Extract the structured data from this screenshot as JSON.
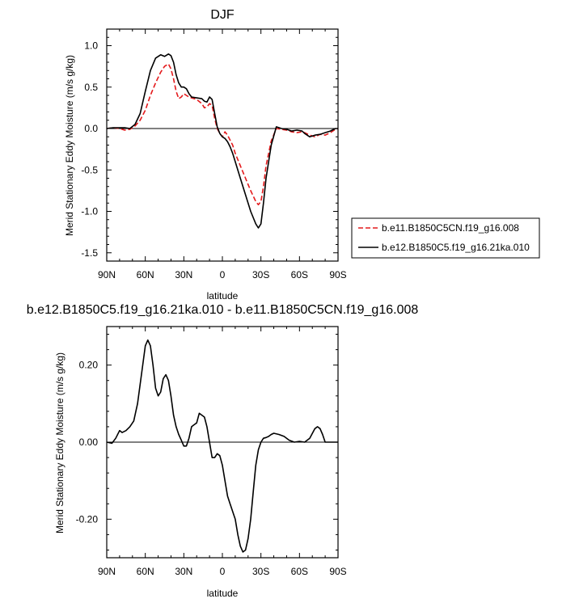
{
  "chart_data": [
    {
      "type": "line",
      "title": "DJF",
      "xlabel": "latitude",
      "ylabel": "Merid Stationary Eddy Moisture (m/s g/kg)",
      "xlim": [
        90,
        -90
      ],
      "ylim": [
        -1.6,
        1.2
      ],
      "xticks": [
        90,
        60,
        30,
        0,
        -30,
        -60,
        -90
      ],
      "xtick_labels": [
        "90N",
        "60N",
        "30N",
        "0",
        "30S",
        "60S",
        "90S"
      ],
      "yticks": [
        -1.5,
        -1.0,
        -0.5,
        0.0,
        0.5,
        1.0
      ],
      "ytick_labels": [
        "-1.5",
        "-1.0",
        "-0.5",
        "0.0",
        "0.5",
        "1.0"
      ],
      "legend_position": "right",
      "series": [
        {
          "name": "b.e11.B1850C5CN.f19_g16.008",
          "color": "#e41a1c",
          "dash": true,
          "x": [
            90,
            85,
            80,
            76,
            72,
            68,
            64,
            60,
            56,
            52,
            48,
            45,
            42,
            40,
            38,
            36,
            34,
            32,
            30,
            28,
            26,
            24,
            20,
            16,
            14,
            12,
            10,
            8,
            6,
            4,
            2,
            0,
            -2,
            -4,
            -6,
            -8,
            -10,
            -14,
            -18,
            -22,
            -26,
            -28,
            -30,
            -32,
            -34,
            -38,
            -42,
            -46,
            -50,
            -54,
            -58,
            -62,
            -64,
            -68,
            -72,
            -76,
            -80,
            -84,
            -88,
            -90
          ],
          "y": [
            0.0,
            0.01,
            0.0,
            -0.02,
            -0.01,
            0.03,
            0.1,
            0.22,
            0.4,
            0.55,
            0.68,
            0.75,
            0.78,
            0.72,
            0.6,
            0.45,
            0.36,
            0.38,
            0.42,
            0.4,
            0.38,
            0.37,
            0.35,
            0.3,
            0.25,
            0.26,
            0.3,
            0.28,
            0.12,
            0.0,
            -0.06,
            -0.1,
            -0.04,
            -0.08,
            -0.14,
            -0.2,
            -0.3,
            -0.45,
            -0.6,
            -0.75,
            -0.88,
            -0.92,
            -0.88,
            -0.7,
            -0.45,
            -0.15,
            0.0,
            -0.01,
            -0.02,
            -0.04,
            -0.05,
            -0.04,
            -0.05,
            -0.08,
            -0.1,
            -0.07,
            -0.08,
            -0.05,
            -0.01,
            0.0
          ]
        },
        {
          "name": "b.e12.B1850C5.f19_g16.21ka.010",
          "color": "#000000",
          "dash": false,
          "x": [
            90,
            85,
            80,
            76,
            72,
            68,
            64,
            60,
            56,
            52,
            48,
            45,
            42,
            40,
            38,
            36,
            34,
            32,
            30,
            28,
            26,
            24,
            20,
            16,
            14,
            12,
            10,
            8,
            6,
            4,
            2,
            0,
            -2,
            -4,
            -6,
            -8,
            -10,
            -14,
            -18,
            -22,
            -26,
            -28,
            -30,
            -32,
            -34,
            -38,
            -42,
            -46,
            -50,
            -54,
            -58,
            -62,
            -64,
            -68,
            -72,
            -76,
            -80,
            -84,
            -88,
            -90
          ],
          "y": [
            0.0,
            0.01,
            0.01,
            0.01,
            0.0,
            0.05,
            0.18,
            0.45,
            0.7,
            0.85,
            0.89,
            0.87,
            0.9,
            0.88,
            0.8,
            0.65,
            0.55,
            0.5,
            0.5,
            0.48,
            0.42,
            0.38,
            0.37,
            0.36,
            0.33,
            0.32,
            0.38,
            0.35,
            0.18,
            0.02,
            -0.06,
            -0.1,
            -0.12,
            -0.16,
            -0.22,
            -0.3,
            -0.4,
            -0.6,
            -0.8,
            -1.0,
            -1.15,
            -1.2,
            -1.15,
            -0.9,
            -0.6,
            -0.2,
            0.02,
            0.0,
            -0.01,
            -0.03,
            -0.02,
            -0.03,
            -0.06,
            -0.1,
            -0.08,
            -0.07,
            -0.05,
            -0.03,
            0.0,
            0.0
          ]
        }
      ]
    },
    {
      "type": "line",
      "title": "b.e12.B1850C5.f19_g16.21ka.010 - b.e11.B1850C5CN.f19_g16.008",
      "xlabel": "latitude",
      "ylabel": "Merid Stationary Eddy Moisture (m/s g/kg)",
      "xlim": [
        90,
        -90
      ],
      "ylim": [
        -0.3,
        0.3
      ],
      "xticks": [
        90,
        60,
        30,
        0,
        -30,
        -60,
        -90
      ],
      "xtick_labels": [
        "90N",
        "60N",
        "30N",
        "0",
        "30S",
        "60S",
        "90S"
      ],
      "yticks": [
        -0.2,
        0.0,
        0.2
      ],
      "ytick_labels": [
        "-0.20",
        "0.00",
        "0.20"
      ],
      "series": [
        {
          "color": "#000000",
          "dash": false,
          "x": [
            90,
            86,
            83,
            80,
            78,
            75,
            72,
            69,
            66,
            64,
            62,
            60,
            58,
            56,
            54,
            52,
            50,
            48,
            46,
            44,
            42,
            40,
            38,
            36,
            34,
            32,
            30,
            28,
            26,
            24,
            22,
            20,
            18,
            16,
            14,
            12,
            10,
            8,
            6,
            4,
            2,
            0,
            -2,
            -4,
            -6,
            -8,
            -10,
            -12,
            -14,
            -16,
            -18,
            -20,
            -22,
            -24,
            -26,
            -28,
            -30,
            -32,
            -34,
            -36,
            -38,
            -40,
            -44,
            -48,
            -52,
            -56,
            -60,
            -64,
            -68,
            -72,
            -74,
            -76,
            -78,
            -80,
            -82,
            -84,
            -86,
            -88,
            -90
          ],
          "y": [
            0.0,
            -0.003,
            0.01,
            0.03,
            0.025,
            0.03,
            0.04,
            0.055,
            0.1,
            0.15,
            0.2,
            0.25,
            0.265,
            0.25,
            0.2,
            0.14,
            0.12,
            0.13,
            0.165,
            0.175,
            0.16,
            0.12,
            0.07,
            0.04,
            0.02,
            0.005,
            -0.01,
            -0.01,
            0.01,
            0.04,
            0.045,
            0.05,
            0.075,
            0.07,
            0.065,
            0.04,
            0.0,
            -0.04,
            -0.04,
            -0.03,
            -0.035,
            -0.06,
            -0.1,
            -0.14,
            -0.16,
            -0.18,
            -0.2,
            -0.24,
            -0.27,
            -0.285,
            -0.28,
            -0.25,
            -0.2,
            -0.13,
            -0.06,
            -0.02,
            0.0,
            0.01,
            0.012,
            0.015,
            0.02,
            0.023,
            0.02,
            0.015,
            0.005,
            0.0,
            0.002,
            0.0,
            0.01,
            0.035,
            0.04,
            0.035,
            0.02,
            0.0,
            0.0,
            0.0,
            0.0,
            0.0,
            0.0
          ]
        }
      ]
    }
  ]
}
